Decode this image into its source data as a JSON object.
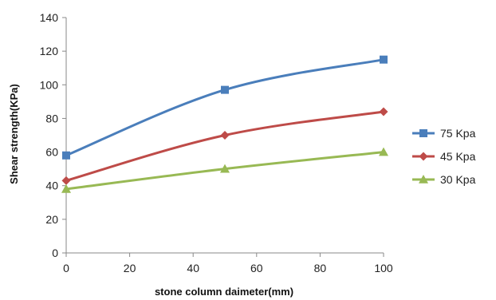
{
  "chart_data": {
    "type": "line",
    "title": "",
    "xlabel": "stone column daimeter(mm)",
    "ylabel": "Shear strength(KPa)",
    "xlim": [
      0,
      100
    ],
    "ylim": [
      0,
      140
    ],
    "xticks": [
      0,
      20,
      40,
      60,
      80,
      100
    ],
    "yticks": [
      0,
      20,
      40,
      60,
      80,
      100,
      120,
      140
    ],
    "grid": false,
    "legend_position": "right",
    "x": [
      0,
      50,
      100
    ],
    "series": [
      {
        "name": "75 Kpa",
        "values": [
          58,
          97,
          115
        ],
        "color": "#4a7ebb",
        "marker": "square"
      },
      {
        "name": "45 Kpa",
        "values": [
          43,
          70,
          84
        ],
        "color": "#be4b48",
        "marker": "diamond"
      },
      {
        "name": "30 Kpa",
        "values": [
          38,
          50,
          60
        ],
        "color": "#98b954",
        "marker": "triangle"
      }
    ]
  }
}
